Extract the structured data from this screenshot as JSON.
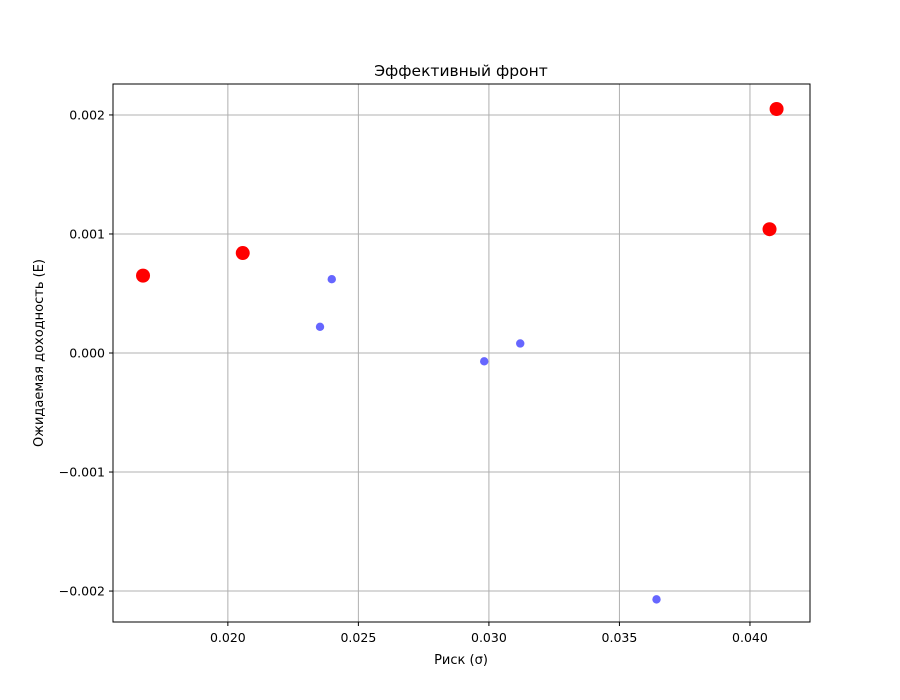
{
  "chart_data": {
    "type": "scatter",
    "title": "Эффективный фронт",
    "xlabel": "Риск (σ)",
    "ylabel": "Ожидаемая доходность (E)",
    "xlim": [
      0.0156,
      0.0423
    ],
    "ylim": [
      -0.00226,
      0.00226
    ],
    "x_ticks": [
      0.02,
      0.025,
      0.03,
      0.035,
      0.04
    ],
    "x_tick_labels": [
      "0.020",
      "0.025",
      "0.030",
      "0.035",
      "0.040"
    ],
    "y_ticks": [
      -0.002,
      -0.001,
      0.0,
      0.001,
      0.002
    ],
    "y_tick_labels": [
      "−0.002",
      "−0.001",
      "0.000",
      "0.001",
      "0.002"
    ],
    "grid": true,
    "series": [
      {
        "color": "#0000ff",
        "opacity": 0.6,
        "marker": "small",
        "points": [
          {
            "x": 0.02353,
            "y": 0.00022
          },
          {
            "x": 0.02398,
            "y": 0.00062
          },
          {
            "x": 0.02982,
            "y": -7e-05
          },
          {
            "x": 0.0312,
            "y": 8e-05
          },
          {
            "x": 0.03642,
            "y": -0.00207
          }
        ]
      },
      {
        "color": "#ff0000",
        "opacity": 1.0,
        "marker": "large",
        "points": [
          {
            "x": 0.01675,
            "y": 0.00065
          },
          {
            "x": 0.02057,
            "y": 0.00084
          },
          {
            "x": 0.04075,
            "y": 0.00104
          },
          {
            "x": 0.04102,
            "y": 0.00205
          }
        ]
      }
    ]
  }
}
